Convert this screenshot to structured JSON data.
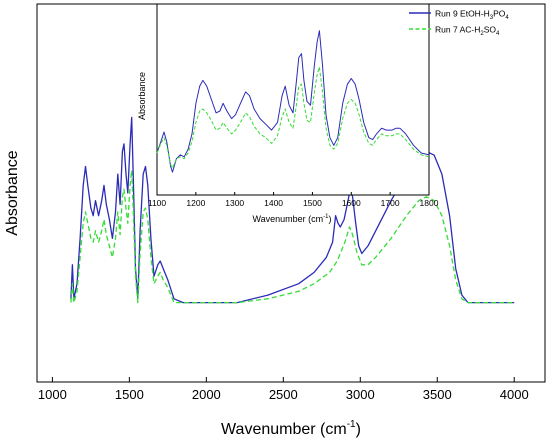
{
  "chart_data": [
    {
      "type": "line",
      "xlabel_base": "Wavenumber (cm",
      "xlabel_sup": "-1",
      "xlabel_end": ")",
      "ylabel": "Absorbance",
      "xlim": [
        900,
        4200
      ],
      "ylim": [
        0,
        100
      ],
      "xticks": [
        1000,
        1500,
        2000,
        2500,
        3000,
        3500,
        4000
      ],
      "yticks_shown": false,
      "grid": false,
      "series": [
        {
          "color": "#2b2bb8",
          "dash": "solid",
          "points": [
            [
              1120,
              22
            ],
            [
              1130,
              31
            ],
            [
              1140,
              22
            ],
            [
              1160,
              26
            ],
            [
              1180,
              38
            ],
            [
              1200,
              52
            ],
            [
              1215,
              57
            ],
            [
              1230,
              52
            ],
            [
              1250,
              46
            ],
            [
              1265,
              44
            ],
            [
              1280,
              48
            ],
            [
              1300,
              44
            ],
            [
              1320,
              48
            ],
            [
              1335,
              52
            ],
            [
              1350,
              47
            ],
            [
              1370,
              43
            ],
            [
              1390,
              38
            ],
            [
              1410,
              45
            ],
            [
              1425,
              55
            ],
            [
              1440,
              47
            ],
            [
              1455,
              61
            ],
            [
              1465,
              63
            ],
            [
              1478,
              55
            ],
            [
              1490,
              50
            ],
            [
              1505,
              63
            ],
            [
              1515,
              70
            ],
            [
              1525,
              55
            ],
            [
              1540,
              30
            ],
            [
              1555,
              22
            ],
            [
              1570,
              40
            ],
            [
              1590,
              55
            ],
            [
              1605,
              57
            ],
            [
              1620,
              52
            ],
            [
              1640,
              38
            ],
            [
              1660,
              28
            ],
            [
              1685,
              31
            ],
            [
              1700,
              32
            ],
            [
              1720,
              30
            ],
            [
              1750,
              27
            ],
            [
              1790,
              22
            ],
            [
              1850,
              21
            ],
            [
              2000,
              21
            ],
            [
              2200,
              21
            ],
            [
              2400,
              23
            ],
            [
              2600,
              26
            ],
            [
              2700,
              29
            ],
            [
              2780,
              33
            ],
            [
              2820,
              37
            ],
            [
              2840,
              44
            ],
            [
              2855,
              42
            ],
            [
              2870,
              41
            ],
            [
              2895,
              43
            ],
            [
              2920,
              48
            ],
            [
              2935,
              51
            ],
            [
              2950,
              49
            ],
            [
              2970,
              42
            ],
            [
              2990,
              36
            ],
            [
              3010,
              34
            ],
            [
              3050,
              36
            ],
            [
              3100,
              40
            ],
            [
              3200,
              48
            ],
            [
              3300,
              55
            ],
            [
              3380,
              60
            ],
            [
              3430,
              61
            ],
            [
              3480,
              60
            ],
            [
              3530,
              55
            ],
            [
              3580,
              44
            ],
            [
              3620,
              30
            ],
            [
              3660,
              23
            ],
            [
              3700,
              21
            ],
            [
              3800,
              21
            ],
            [
              4000,
              21
            ]
          ]
        },
        {
          "color": "#33dd33",
          "dash": "dashed",
          "points": [
            [
              1120,
              21
            ],
            [
              1130,
              26
            ],
            [
              1140,
              21
            ],
            [
              1160,
              24
            ],
            [
              1180,
              33
            ],
            [
              1200,
              42
            ],
            [
              1215,
              45
            ],
            [
              1230,
              42
            ],
            [
              1250,
              38
            ],
            [
              1265,
              37
            ],
            [
              1280,
              40
            ],
            [
              1300,
              37
            ],
            [
              1320,
              40
            ],
            [
              1335,
              43
            ],
            [
              1350,
              39
            ],
            [
              1370,
              36
            ],
            [
              1390,
              33
            ],
            [
              1410,
              38
            ],
            [
              1425,
              45
            ],
            [
              1440,
              39
            ],
            [
              1455,
              49
            ],
            [
              1465,
              51
            ],
            [
              1478,
              46
            ],
            [
              1490,
              42
            ],
            [
              1505,
              52
            ],
            [
              1515,
              56
            ],
            [
              1525,
              46
            ],
            [
              1540,
              28
            ],
            [
              1555,
              21
            ],
            [
              1570,
              34
            ],
            [
              1590,
              45
            ],
            [
              1605,
              46
            ],
            [
              1620,
              43
            ],
            [
              1640,
              33
            ],
            [
              1660,
              26
            ],
            [
              1685,
              28
            ],
            [
              1700,
              29
            ],
            [
              1720,
              27
            ],
            [
              1750,
              25
            ],
            [
              1790,
              21
            ],
            [
              1850,
              21
            ],
            [
              2000,
              21
            ],
            [
              2200,
              21
            ],
            [
              2400,
              22
            ],
            [
              2600,
              24
            ],
            [
              2700,
              26
            ],
            [
              2800,
              29
            ],
            [
              2850,
              32
            ],
            [
              2900,
              37
            ],
            [
              2930,
              41
            ],
            [
              2950,
              39
            ],
            [
              2980,
              34
            ],
            [
              3010,
              31
            ],
            [
              3050,
              31
            ],
            [
              3100,
              33
            ],
            [
              3200,
              38
            ],
            [
              3300,
              44
            ],
            [
              3380,
              48
            ],
            [
              3430,
              49
            ],
            [
              3480,
              48
            ],
            [
              3530,
              44
            ],
            [
              3580,
              36
            ],
            [
              3620,
              27
            ],
            [
              3660,
              22
            ],
            [
              3700,
              21
            ],
            [
              3800,
              21
            ],
            [
              4000,
              21
            ]
          ]
        }
      ]
    },
    {
      "type": "line",
      "xlabel_base": "Wavenumber (cm",
      "xlabel_sup": "-1",
      "xlabel_end": ")",
      "ylabel": "Absorbance",
      "xlim": [
        1100,
        1800
      ],
      "ylim": [
        0,
        100
      ],
      "xticks": [
        1100,
        1200,
        1300,
        1400,
        1500,
        1600,
        1700,
        1800
      ],
      "yticks_shown": false,
      "grid": false,
      "legend_position": "top-right",
      "legend": [
        {
          "label_base": "Run 9 EtOH-H",
          "sub1": "3",
          "mid": "PO",
          "sub2": "4",
          "color": "#2b2bb8",
          "dash": "solid"
        },
        {
          "label_base": "Run 7 AC-H",
          "sub1": "2",
          "mid": "SO",
          "sub2": "4",
          "color": "#33dd33",
          "dash": "dashed"
        }
      ],
      "series": [
        {
          "color": "#2b2bb8",
          "dash": "solid",
          "points": [
            [
              1100,
              22
            ],
            [
              1110,
              28
            ],
            [
              1118,
              33
            ],
            [
              1125,
              28
            ],
            [
              1135,
              15
            ],
            [
              1140,
              12
            ],
            [
              1150,
              19
            ],
            [
              1160,
              21
            ],
            [
              1170,
              20
            ],
            [
              1180,
              24
            ],
            [
              1190,
              32
            ],
            [
              1200,
              48
            ],
            [
              1210,
              57
            ],
            [
              1218,
              60
            ],
            [
              1228,
              57
            ],
            [
              1240,
              50
            ],
            [
              1252,
              43
            ],
            [
              1262,
              44
            ],
            [
              1270,
              48
            ],
            [
              1280,
              44
            ],
            [
              1292,
              40
            ],
            [
              1302,
              42
            ],
            [
              1315,
              48
            ],
            [
              1328,
              54
            ],
            [
              1338,
              52
            ],
            [
              1350,
              45
            ],
            [
              1365,
              40
            ],
            [
              1380,
              37
            ],
            [
              1395,
              34
            ],
            [
              1410,
              38
            ],
            [
              1422,
              52
            ],
            [
              1430,
              57
            ],
            [
              1440,
              47
            ],
            [
              1450,
              43
            ],
            [
              1458,
              58
            ],
            [
              1465,
              72
            ],
            [
              1472,
              74
            ],
            [
              1478,
              60
            ],
            [
              1486,
              49
            ],
            [
              1495,
              47
            ],
            [
              1505,
              68
            ],
            [
              1512,
              80
            ],
            [
              1518,
              86
            ],
            [
              1526,
              68
            ],
            [
              1535,
              42
            ],
            [
              1545,
              30
            ],
            [
              1555,
              26
            ],
            [
              1565,
              30
            ],
            [
              1578,
              48
            ],
            [
              1590,
              58
            ],
            [
              1600,
              61
            ],
            [
              1610,
              58
            ],
            [
              1620,
              50
            ],
            [
              1632,
              38
            ],
            [
              1645,
              30
            ],
            [
              1655,
              29
            ],
            [
              1665,
              32
            ],
            [
              1678,
              35
            ],
            [
              1690,
              34
            ],
            [
              1705,
              34
            ],
            [
              1715,
              35
            ],
            [
              1725,
              35
            ],
            [
              1740,
              32
            ],
            [
              1760,
              26
            ],
            [
              1780,
              22
            ],
            [
              1800,
              21
            ]
          ]
        },
        {
          "color": "#33dd33",
          "dash": "dashed",
          "points": [
            [
              1100,
              22
            ],
            [
              1110,
              27
            ],
            [
              1118,
              30
            ],
            [
              1125,
              26
            ],
            [
              1135,
              16
            ],
            [
              1140,
              14
            ],
            [
              1150,
              19
            ],
            [
              1160,
              20
            ],
            [
              1170,
              19
            ],
            [
              1180,
              22
            ],
            [
              1190,
              28
            ],
            [
              1200,
              38
            ],
            [
              1210,
              44
            ],
            [
              1218,
              45
            ],
            [
              1228,
              43
            ],
            [
              1240,
              39
            ],
            [
              1252,
              34
            ],
            [
              1262,
              35
            ],
            [
              1270,
              38
            ],
            [
              1280,
              35
            ],
            [
              1292,
              32
            ],
            [
              1302,
              34
            ],
            [
              1315,
              38
            ],
            [
              1328,
              43
            ],
            [
              1338,
              41
            ],
            [
              1350,
              36
            ],
            [
              1365,
              32
            ],
            [
              1380,
              30
            ],
            [
              1395,
              27
            ],
            [
              1410,
              31
            ],
            [
              1422,
              41
            ],
            [
              1430,
              45
            ],
            [
              1440,
              38
            ],
            [
              1450,
              35
            ],
            [
              1458,
              46
            ],
            [
              1465,
              57
            ],
            [
              1472,
              58
            ],
            [
              1478,
              48
            ],
            [
              1486,
              39
            ],
            [
              1495,
              38
            ],
            [
              1505,
              54
            ],
            [
              1512,
              63
            ],
            [
              1518,
              67
            ],
            [
              1526,
              54
            ],
            [
              1535,
              35
            ],
            [
              1545,
              26
            ],
            [
              1555,
              24
            ],
            [
              1565,
              27
            ],
            [
              1578,
              40
            ],
            [
              1590,
              48
            ],
            [
              1600,
              50
            ],
            [
              1610,
              48
            ],
            [
              1620,
              42
            ],
            [
              1632,
              33
            ],
            [
              1645,
              27
            ],
            [
              1655,
              26
            ],
            [
              1665,
              29
            ],
            [
              1678,
              32
            ],
            [
              1690,
              31
            ],
            [
              1705,
              31
            ],
            [
              1715,
              32
            ],
            [
              1725,
              32
            ],
            [
              1740,
              29
            ],
            [
              1760,
              24
            ],
            [
              1780,
              21
            ],
            [
              1800,
              20
            ]
          ]
        }
      ]
    }
  ]
}
